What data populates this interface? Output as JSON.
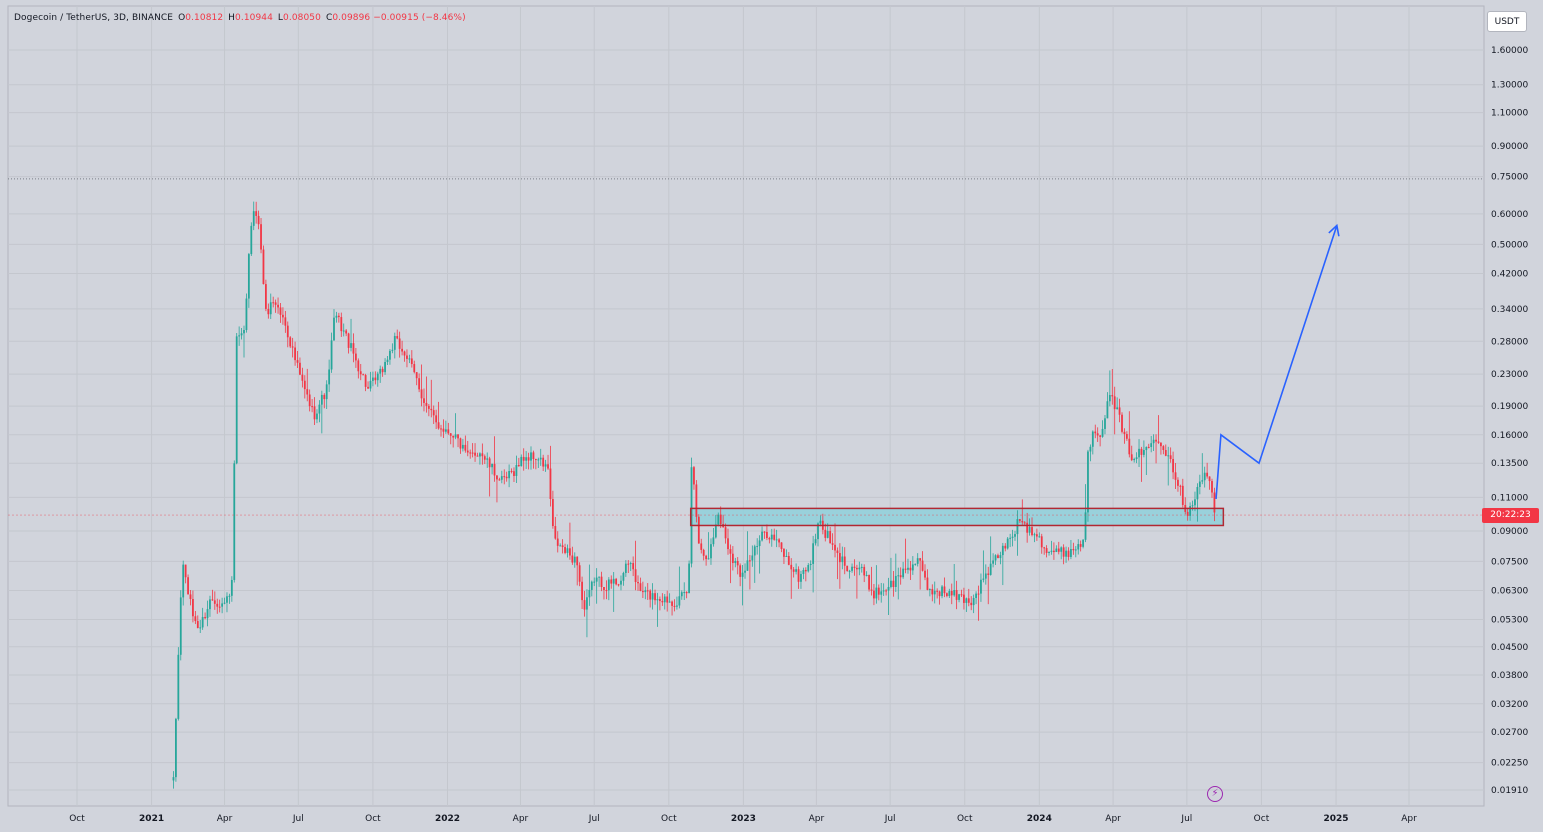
{
  "header": {
    "symbol": "Dogecoin / TetherUS, 3D, BINANCE",
    "open_label": "O",
    "open": "0.10812",
    "high_label": "H",
    "high": "0.10944",
    "low_label": "L",
    "low": "0.08050",
    "close_label": "C",
    "close": "0.09896",
    "change": "−0.00915 (−8.46%)"
  },
  "currency": "USDT",
  "timer": "20:22:23",
  "colors": {
    "up": "#26a69a",
    "down": "#f23645",
    "zone_fill": "#8fd0da",
    "zone_border": "#b22833",
    "projection": "#2962ff",
    "bg": "#d1d4dc",
    "grid": "#c4c7ce"
  },
  "chart_data": {
    "type": "candlestick",
    "y_scale": "log",
    "y_ticks": [
      "1.60000",
      "1.30000",
      "1.10000",
      "0.90000",
      "0.75000",
      "0.60000",
      "0.50000",
      "0.42000",
      "0.34000",
      "0.28000",
      "0.23000",
      "0.19000",
      "0.16000",
      "0.13500",
      "0.11000",
      "0.09000",
      "0.07500",
      "0.06300",
      "0.05300",
      "0.04500",
      "0.03800",
      "0.03200",
      "0.02700",
      "0.02250",
      "0.01910"
    ],
    "x_ticks": [
      "Oct",
      "2021",
      "Apr",
      "Jul",
      "Oct",
      "2022",
      "Apr",
      "Jul",
      "Oct",
      "2023",
      "Apr",
      "Jul",
      "Oct",
      "2024",
      "Apr",
      "Jul",
      "Oct",
      "2025",
      "Apr"
    ],
    "x_ticks_bold": [
      "2021",
      "2022",
      "2023",
      "2024",
      "2025"
    ],
    "ath_line": 0.74,
    "series": [
      {
        "x": "2021-01-28",
        "y": 0.02
      },
      {
        "x": "2021-02-05",
        "y": 0.055
      },
      {
        "x": "2021-02-08",
        "y": 0.075
      },
      {
        "x": "2021-02-20",
        "y": 0.055
      },
      {
        "x": "2021-03-01",
        "y": 0.05
      },
      {
        "x": "2021-03-15",
        "y": 0.06
      },
      {
        "x": "2021-04-01",
        "y": 0.058
      },
      {
        "x": "2021-04-10",
        "y": 0.065
      },
      {
        "x": "2021-04-16",
        "y": 0.28
      },
      {
        "x": "2021-04-25",
        "y": 0.29
      },
      {
        "x": "2021-05-02",
        "y": 0.5
      },
      {
        "x": "2021-05-08",
        "y": 0.65
      },
      {
        "x": "2021-05-15",
        "y": 0.52
      },
      {
        "x": "2021-05-22",
        "y": 0.33
      },
      {
        "x": "2021-06-01",
        "y": 0.36
      },
      {
        "x": "2021-06-15",
        "y": 0.31
      },
      {
        "x": "2021-06-25",
        "y": 0.26
      },
      {
        "x": "2021-07-05",
        "y": 0.22
      },
      {
        "x": "2021-07-20",
        "y": 0.18
      },
      {
        "x": "2021-08-05",
        "y": 0.21
      },
      {
        "x": "2021-08-15",
        "y": 0.33
      },
      {
        "x": "2021-08-25",
        "y": 0.3
      },
      {
        "x": "2021-09-10",
        "y": 0.25
      },
      {
        "x": "2021-09-25",
        "y": 0.21
      },
      {
        "x": "2021-10-10",
        "y": 0.23
      },
      {
        "x": "2021-10-28",
        "y": 0.28
      },
      {
        "x": "2021-11-10",
        "y": 0.26
      },
      {
        "x": "2021-11-25",
        "y": 0.22
      },
      {
        "x": "2021-12-05",
        "y": 0.19
      },
      {
        "x": "2021-12-20",
        "y": 0.17
      },
      {
        "x": "2022-01-10",
        "y": 0.16
      },
      {
        "x": "2022-01-25",
        "y": 0.14
      },
      {
        "x": "2022-02-10",
        "y": 0.145
      },
      {
        "x": "2022-02-25",
        "y": 0.13
      },
      {
        "x": "2022-03-10",
        "y": 0.12
      },
      {
        "x": "2022-03-25",
        "y": 0.13
      },
      {
        "x": "2022-04-05",
        "y": 0.14
      },
      {
        "x": "2022-04-20",
        "y": 0.14
      },
      {
        "x": "2022-05-05",
        "y": 0.13
      },
      {
        "x": "2022-05-12",
        "y": 0.085
      },
      {
        "x": "2022-05-25",
        "y": 0.08
      },
      {
        "x": "2022-06-10",
        "y": 0.075
      },
      {
        "x": "2022-06-18",
        "y": 0.055
      },
      {
        "x": "2022-07-01",
        "y": 0.068
      },
      {
        "x": "2022-07-15",
        "y": 0.065
      },
      {
        "x": "2022-08-01",
        "y": 0.067
      },
      {
        "x": "2022-08-15",
        "y": 0.075
      },
      {
        "x": "2022-08-25",
        "y": 0.063
      },
      {
        "x": "2022-09-10",
        "y": 0.061
      },
      {
        "x": "2022-09-25",
        "y": 0.06
      },
      {
        "x": "2022-10-10",
        "y": 0.059
      },
      {
        "x": "2022-10-25",
        "y": 0.062
      },
      {
        "x": "2022-10-29",
        "y": 0.13
      },
      {
        "x": "2022-11-01",
        "y": 0.12
      },
      {
        "x": "2022-11-08",
        "y": 0.08
      },
      {
        "x": "2022-11-20",
        "y": 0.078
      },
      {
        "x": "2022-12-01",
        "y": 0.1
      },
      {
        "x": "2022-12-15",
        "y": 0.08
      },
      {
        "x": "2022-12-28",
        "y": 0.07
      },
      {
        "x": "2023-01-15",
        "y": 0.08
      },
      {
        "x": "2023-01-28",
        "y": 0.09
      },
      {
        "x": "2023-02-10",
        "y": 0.085
      },
      {
        "x": "2023-02-25",
        "y": 0.075
      },
      {
        "x": "2023-03-10",
        "y": 0.068
      },
      {
        "x": "2023-03-25",
        "y": 0.075
      },
      {
        "x": "2023-04-03",
        "y": 0.095
      },
      {
        "x": "2023-04-15",
        "y": 0.087
      },
      {
        "x": "2023-04-25",
        "y": 0.078
      },
      {
        "x": "2023-05-10",
        "y": 0.073
      },
      {
        "x": "2023-05-25",
        "y": 0.072
      },
      {
        "x": "2023-06-10",
        "y": 0.062
      },
      {
        "x": "2023-06-20",
        "y": 0.063
      },
      {
        "x": "2023-07-05",
        "y": 0.066
      },
      {
        "x": "2023-07-20",
        "y": 0.072
      },
      {
        "x": "2023-08-05",
        "y": 0.075
      },
      {
        "x": "2023-08-17",
        "y": 0.063
      },
      {
        "x": "2023-09-01",
        "y": 0.063
      },
      {
        "x": "2023-09-20",
        "y": 0.061
      },
      {
        "x": "2023-10-10",
        "y": 0.059
      },
      {
        "x": "2023-10-25",
        "y": 0.068
      },
      {
        "x": "2023-11-10",
        "y": 0.077
      },
      {
        "x": "2023-11-25",
        "y": 0.085
      },
      {
        "x": "2023-12-10",
        "y": 0.098
      },
      {
        "x": "2023-12-15",
        "y": 0.092
      },
      {
        "x": "2023-12-28",
        "y": 0.09
      },
      {
        "x": "2024-01-10",
        "y": 0.08
      },
      {
        "x": "2024-01-25",
        "y": 0.079
      },
      {
        "x": "2024-02-10",
        "y": 0.08
      },
      {
        "x": "2024-02-25",
        "y": 0.085
      },
      {
        "x": "2024-03-01",
        "y": 0.14
      },
      {
        "x": "2024-03-08",
        "y": 0.17
      },
      {
        "x": "2024-03-15",
        "y": 0.16
      },
      {
        "x": "2024-03-28",
        "y": 0.2
      },
      {
        "x": "2024-04-05",
        "y": 0.19
      },
      {
        "x": "2024-04-13",
        "y": 0.16
      },
      {
        "x": "2024-04-25",
        "y": 0.14
      },
      {
        "x": "2024-05-10",
        "y": 0.145
      },
      {
        "x": "2024-05-25",
        "y": 0.16
      },
      {
        "x": "2024-06-10",
        "y": 0.14
      },
      {
        "x": "2024-06-20",
        "y": 0.12
      },
      {
        "x": "2024-07-01",
        "y": 0.1
      },
      {
        "x": "2024-07-10",
        "y": 0.11
      },
      {
        "x": "2024-07-25",
        "y": 0.13
      },
      {
        "x": "2024-08-01",
        "y": 0.11
      },
      {
        "x": "2024-08-05",
        "y": 0.099
      }
    ],
    "zone": {
      "x_start": "2022-10-28",
      "x_end": "2024-08-15",
      "y_low": 0.093,
      "y_high": 0.103
    },
    "projection": [
      {
        "x": "2024-08-06",
        "y": 0.109
      },
      {
        "x": "2024-08-12",
        "y": 0.16
      },
      {
        "x": "2024-09-28",
        "y": 0.135
      },
      {
        "x": "2025-01-02",
        "y": 0.56
      }
    ]
  }
}
